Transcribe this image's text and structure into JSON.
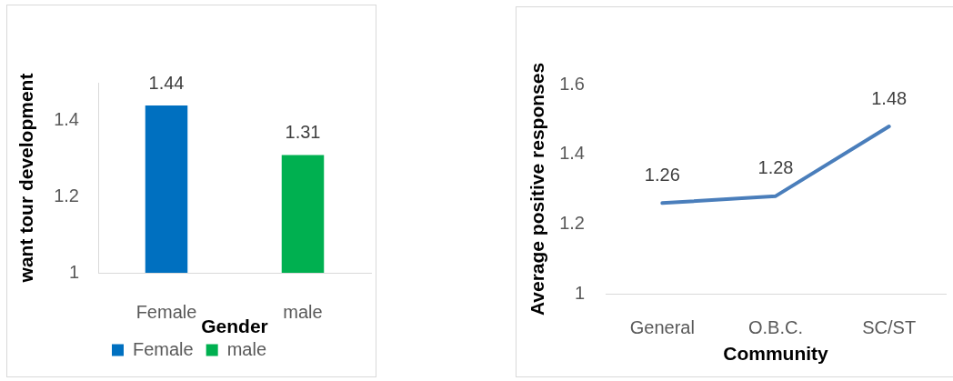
{
  "chart_data": [
    {
      "type": "bar",
      "xlabel": "Gender",
      "ylabel": "want tour development",
      "categories": [
        "Female",
        "male"
      ],
      "series": [
        {
          "name": "Female",
          "color": "#0070c0",
          "values": [
            1.44,
            null
          ]
        },
        {
          "name": "male",
          "color": "#00b050",
          "values": [
            null,
            1.31
          ]
        }
      ],
      "ylim": [
        1,
        1.5
      ],
      "yticks": [
        1,
        1.2,
        1.4
      ],
      "data_labels": true,
      "legend": "bottom"
    },
    {
      "type": "line",
      "xlabel": "Community",
      "ylabel": "Average positive responses",
      "categories": [
        "General",
        "O.B.C.",
        "SC/ST"
      ],
      "values": [
        1.26,
        1.28,
        1.48
      ],
      "color": "#4a7ebb",
      "ylim": [
        1,
        1.6
      ],
      "yticks": [
        1,
        1.2,
        1.4,
        1.6
      ],
      "data_labels": true
    }
  ]
}
